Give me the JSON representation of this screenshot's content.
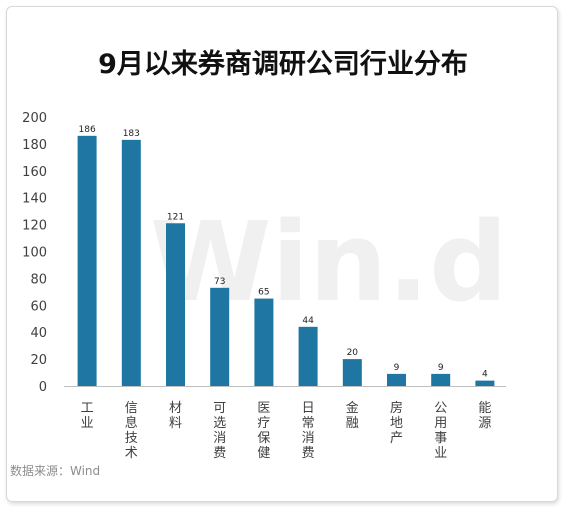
{
  "title": "9月以来券商调研公司行业分布",
  "source": "数据来源：Wind",
  "watermark": "Win.d",
  "colors": {
    "bar": "#1f76a3",
    "axis": "#bfbfbf"
  },
  "chart_data": {
    "type": "bar",
    "categories": [
      "工业",
      "信息技术",
      "材料",
      "可选消费",
      "医疗保健",
      "日常消费",
      "金融",
      "房地产",
      "公用事业",
      "能源"
    ],
    "values": [
      186,
      183,
      121,
      73,
      65,
      44,
      20,
      9,
      9,
      4
    ],
    "ylim": [
      0,
      200
    ],
    "yticks": [
      0,
      20,
      40,
      60,
      80,
      100,
      120,
      140,
      160,
      180,
      200
    ],
    "grid": false,
    "legend": "none"
  }
}
